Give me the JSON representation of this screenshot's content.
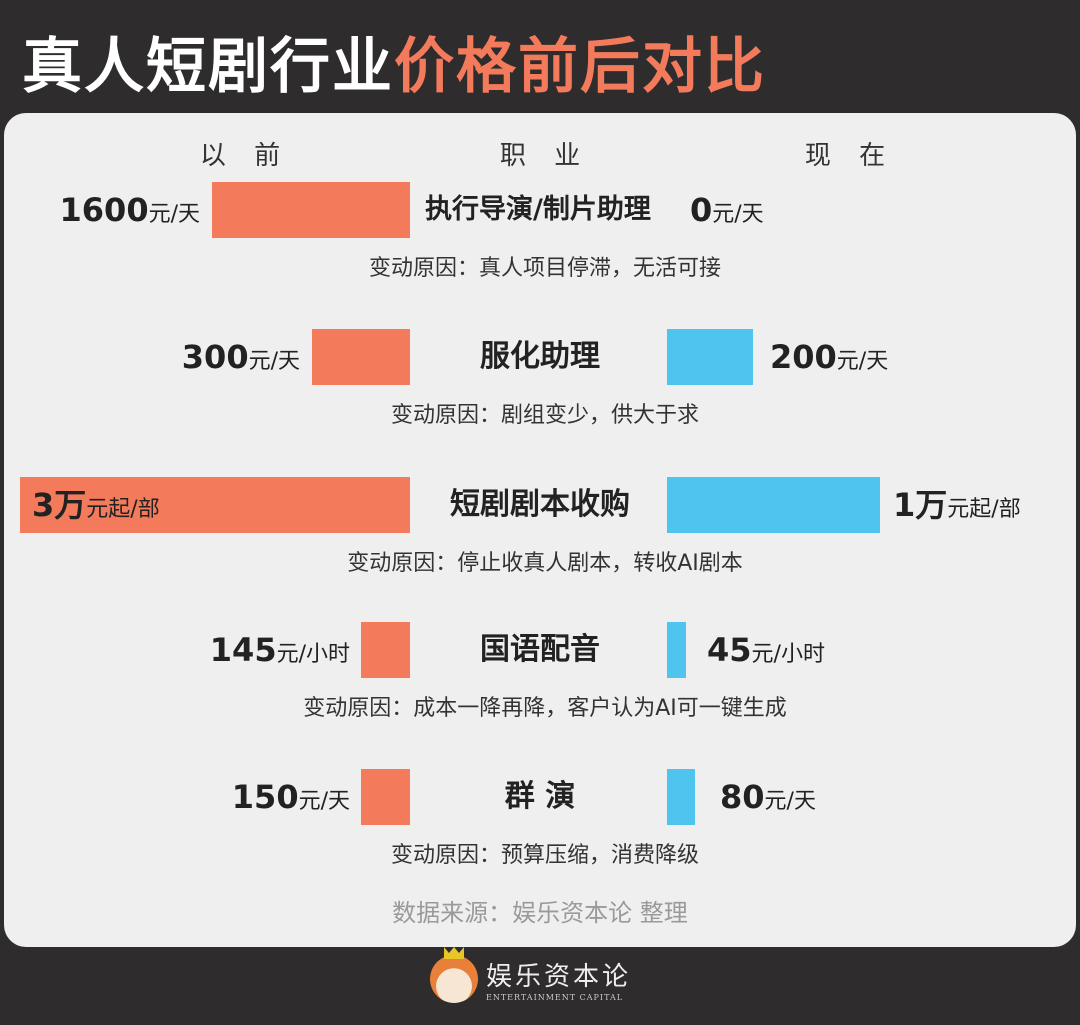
{
  "title": {
    "part1": "真人短剧行业",
    "part2": "价格前后对比"
  },
  "headers": {
    "before": "以 前",
    "job": "职 业",
    "after": "现 在"
  },
  "colors": {
    "before": "#f47a5c",
    "after": "#4fc4ef",
    "background": "#2e2c2c",
    "panel": "#efefef"
  },
  "rows": [
    {
      "job": "执行导演/制片助理",
      "before_num": "1600",
      "before_unit": "元/天",
      "after_num": "0",
      "after_unit": "元/天",
      "reason": "变动原因：真人项目停滞，无活可接"
    },
    {
      "job": "服化助理",
      "before_num": "300",
      "before_unit": "元/天",
      "after_num": "200",
      "after_unit": "元/天",
      "reason": "变动原因：剧组变少，供大于求"
    },
    {
      "job": "短剧剧本收购",
      "before_num": "3万",
      "before_unit": "元起/部",
      "after_num": "1万",
      "after_unit": "元起/部",
      "reason": "变动原因：停止收真人剧本，转收AI剧本"
    },
    {
      "job": "国语配音",
      "before_num": "145",
      "before_unit": "元/小时",
      "after_num": "45",
      "after_unit": "元/小时",
      "reason": "变动原因：成本一降再降，客户认为AI可一键生成"
    },
    {
      "job": "群 演",
      "before_num": "150",
      "before_unit": "元/天",
      "after_num": "80",
      "after_unit": "元/天",
      "reason": "变动原因：预算压缩，消费降级"
    }
  ],
  "chart_data": {
    "type": "bar",
    "categories": [
      "执行导演/制片助理",
      "服化助理",
      "短剧剧本收购",
      "国语配音",
      "群演"
    ],
    "series": [
      {
        "name": "以前",
        "values": [
          1600,
          300,
          30000,
          145,
          150
        ],
        "units": [
          "元/天",
          "元/天",
          "元起/部",
          "元/小时",
          "元/天"
        ]
      },
      {
        "name": "现在",
        "values": [
          0,
          200,
          10000,
          45,
          80
        ],
        "units": [
          "元/天",
          "元/天",
          "元起/部",
          "元/小时",
          "元/天"
        ]
      }
    ]
  },
  "source": "数据来源：娱乐资本论 整理",
  "logo": {
    "cn": "娱乐资本论",
    "en": "ENTERTAINMENT CAPITAL"
  }
}
